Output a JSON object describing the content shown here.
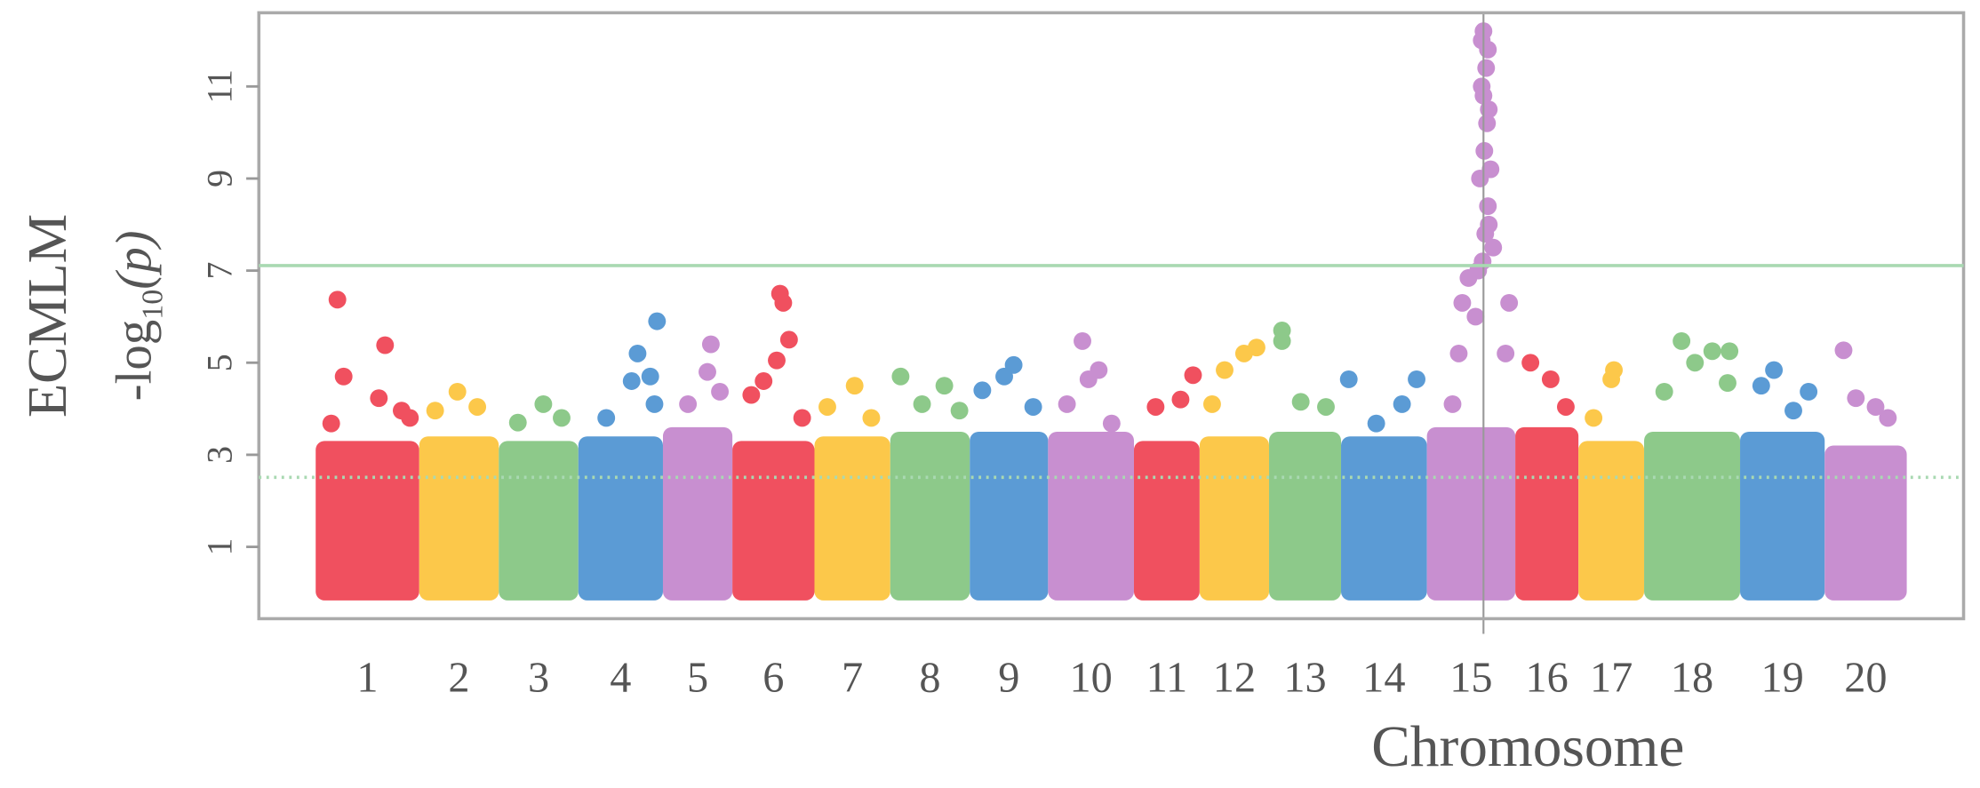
{
  "chart_data": {
    "type": "manhattan",
    "ylabel": {
      "name": "ECMLM",
      "prefix": "-log",
      "sub": "10",
      "arg": "(p)"
    },
    "xlabel": "Chromosome",
    "ylim": [
      -0.56,
      12.6
    ],
    "yticks": [
      1,
      3,
      5,
      7,
      9,
      11
    ],
    "thresholds": [
      {
        "value": 7.11,
        "style": "solid",
        "color": "#a9d9b2"
      },
      {
        "value": 2.51,
        "style": "dotted",
        "color": "#a9d9b2"
      }
    ],
    "categories": [
      "1",
      "2",
      "3",
      "4",
      "5",
      "6",
      "7",
      "8",
      "9",
      "10",
      "11",
      "12",
      "13",
      "14",
      "15",
      "16",
      "17",
      "18",
      "19",
      "20"
    ],
    "lengths": [
      82,
      63,
      63,
      67,
      55,
      65,
      60,
      63,
      62,
      68,
      52,
      55,
      57,
      68,
      70,
      50,
      52,
      76,
      67,
      65
    ],
    "series": [
      {
        "color": "#f0505f",
        "band": 3.3,
        "x": [
          0.21,
          0.27,
          0.67,
          0.61,
          0.83,
          0.15,
          0.91
        ],
        "y": [
          6.37,
          4.7,
          5.38,
          4.23,
          3.96,
          3.68,
          3.8
        ]
      },
      {
        "color": "#fcc84a",
        "band": 3.4,
        "x": [
          0.48,
          0.73,
          0.2
        ],
        "y": [
          4.37,
          4.04,
          3.96
        ]
      },
      {
        "color": "#8dc98a",
        "band": 3.3,
        "x": [
          0.56,
          0.24,
          0.79
        ],
        "y": [
          4.1,
          3.7,
          3.8
        ]
      },
      {
        "color": "#5b9bd5",
        "band": 3.4,
        "x": [
          0.7,
          0.93,
          0.63,
          0.85,
          0.33,
          0.9
        ],
        "y": [
          5.2,
          5.9,
          4.6,
          4.7,
          3.8,
          4.1
        ]
      },
      {
        "color": "#c88fd0",
        "band": 3.6,
        "x": [
          0.69,
          0.64,
          0.36,
          0.82
        ],
        "y": [
          5.4,
          4.8,
          4.1,
          4.37
        ]
      },
      {
        "color": "#f0505f",
        "band": 3.3,
        "x": [
          0.58,
          0.62,
          0.69,
          0.54,
          0.38,
          0.23,
          0.85
        ],
        "y": [
          6.5,
          6.3,
          5.5,
          5.05,
          4.6,
          4.3,
          3.8
        ]
      },
      {
        "color": "#fcc84a",
        "band": 3.4,
        "x": [
          0.53,
          0.17,
          0.75
        ],
        "y": [
          4.5,
          4.04,
          3.8
        ]
      },
      {
        "color": "#8dc98a",
        "band": 3.5,
        "x": [
          0.13,
          0.68,
          0.4,
          0.87
        ],
        "y": [
          4.7,
          4.5,
          4.1,
          3.96
        ]
      },
      {
        "color": "#5b9bd5",
        "band": 3.5,
        "x": [
          0.56,
          0.44,
          0.16,
          0.81
        ],
        "y": [
          4.95,
          4.7,
          4.4,
          4.04
        ]
      },
      {
        "color": "#c88fd0",
        "band": 3.5,
        "x": [
          0.4,
          0.59,
          0.47,
          0.22,
          0.74
        ],
        "y": [
          5.47,
          4.84,
          4.64,
          4.1,
          3.68
        ]
      },
      {
        "color": "#f0505f",
        "band": 3.3,
        "x": [
          0.9,
          0.71,
          0.33
        ],
        "y": [
          4.73,
          4.2,
          4.04
        ]
      },
      {
        "color": "#fcc84a",
        "band": 3.4,
        "x": [
          0.82,
          0.64,
          0.36,
          0.18
        ],
        "y": [
          5.33,
          5.2,
          4.84,
          4.1
        ]
      },
      {
        "color": "#8dc98a",
        "band": 3.5,
        "x": [
          0.18,
          0.18,
          0.44,
          0.79
        ],
        "y": [
          5.7,
          5.47,
          4.15,
          4.04
        ]
      },
      {
        "color": "#5b9bd5",
        "band": 3.4,
        "x": [
          0.09,
          0.88,
          0.71,
          0.41
        ],
        "y": [
          4.64,
          4.64,
          4.1,
          3.68
        ]
      },
      {
        "color": "#c88fd0",
        "band": 3.6,
        "x": [
          0.29,
          0.36,
          0.4,
          0.47,
          0.63,
          0.66,
          0.69,
          0.6,
          0.65,
          0.68,
          0.64,
          0.67,
          0.62,
          0.64,
          0.7,
          0.72,
          0.7,
          0.62,
          0.69,
          0.75,
          0.93,
          0.89,
          0.55,
          0.58
        ],
        "y": [
          4.1,
          5.2,
          6.3,
          6.84,
          7.2,
          7.8,
          8.4,
          9.0,
          9.6,
          10.2,
          10.8,
          11.4,
          12.0,
          12.2,
          8.0,
          9.2,
          10.5,
          11.0,
          11.8,
          7.5,
          6.3,
          5.2,
          6.0,
          7.0
        ]
      },
      {
        "color": "#f0505f",
        "band": 3.6,
        "x": [
          0.24,
          0.56,
          0.8
        ],
        "y": [
          5.0,
          4.64,
          4.04
        ]
      },
      {
        "color": "#fcc84a",
        "band": 3.3,
        "x": [
          0.54,
          0.5,
          0.23
        ],
        "y": [
          4.84,
          4.64,
          3.8
        ]
      },
      {
        "color": "#8dc98a",
        "band": 3.5,
        "x": [
          0.39,
          0.53,
          0.71,
          0.89,
          0.87,
          0.21
        ],
        "y": [
          5.47,
          5.0,
          5.25,
          5.25,
          4.56,
          4.37
        ]
      },
      {
        "color": "#5b9bd5",
        "band": 3.5,
        "x": [
          0.4,
          0.25,
          0.81,
          0.63
        ],
        "y": [
          4.84,
          4.5,
          4.37,
          3.96
        ]
      },
      {
        "color": "#c88fd0",
        "band": 3.2,
        "x": [
          0.23,
          0.38,
          0.62,
          0.77
        ],
        "y": [
          5.27,
          4.23,
          4.04,
          3.8
        ]
      }
    ]
  }
}
